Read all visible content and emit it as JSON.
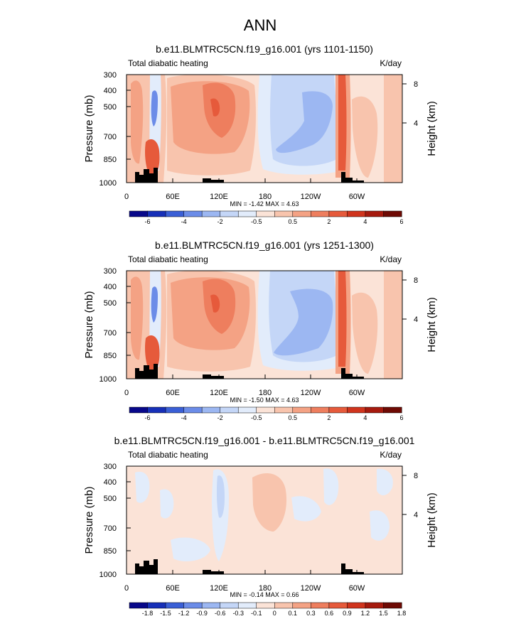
{
  "page_title": "ANN",
  "colors": {
    "axis": "#000000",
    "topography": "#000000",
    "background": "#ffffff"
  },
  "chart_data": [
    {
      "type": "heatmap",
      "title": "b.e11.BLMTRC5CN.f19_g16.001 (yrs 1101-1150)",
      "left_label": "Total diabatic heating",
      "right_label": "K/day",
      "ylabel": "Pressure (mb)",
      "ylabel_right": "Height (km)",
      "x_ticks": [
        "0",
        "60E",
        "120E",
        "180",
        "120W",
        "60W"
      ],
      "y_ticks": [
        "300",
        "400",
        "500",
        "700",
        "850",
        "1000"
      ],
      "height_ticks": [
        "8",
        "4"
      ],
      "xlim": [
        0,
        360
      ],
      "ylim": [
        1000,
        300
      ],
      "stats": "MIN = -1.42  MAX = 4.63",
      "colorbar": {
        "labels": [
          "-6",
          "-4",
          "-2",
          "-0.5",
          "0.5",
          "2",
          "4",
          "6"
        ],
        "colors": [
          "#08088a",
          "#1730b8",
          "#3a5fd6",
          "#6b8ce8",
          "#9cb7f2",
          "#c4d6f7",
          "#e2ecfb",
          "#fbe3d7",
          "#f8c4ad",
          "#f4a284",
          "#ee7e5e",
          "#e65a3b",
          "#d0341d",
          "#a61a0e",
          "#6e0a04"
        ]
      }
    },
    {
      "type": "heatmap",
      "title": "b.e11.BLMTRC5CN.f19_g16.001 (yrs 1251-1300)",
      "left_label": "Total diabatic heating",
      "right_label": "K/day",
      "ylabel": "Pressure (mb)",
      "ylabel_right": "Height (km)",
      "x_ticks": [
        "0",
        "60E",
        "120E",
        "180",
        "120W",
        "60W"
      ],
      "y_ticks": [
        "300",
        "400",
        "500",
        "700",
        "850",
        "1000"
      ],
      "height_ticks": [
        "8",
        "4"
      ],
      "xlim": [
        0,
        360
      ],
      "ylim": [
        1000,
        300
      ],
      "stats": "MIN = -1.50  MAX = 4.63",
      "colorbar": {
        "labels": [
          "-6",
          "-4",
          "-2",
          "-0.5",
          "0.5",
          "2",
          "4",
          "6"
        ],
        "colors": [
          "#08088a",
          "#1730b8",
          "#3a5fd6",
          "#6b8ce8",
          "#9cb7f2",
          "#c4d6f7",
          "#e2ecfb",
          "#fbe3d7",
          "#f8c4ad",
          "#f4a284",
          "#ee7e5e",
          "#e65a3b",
          "#d0341d",
          "#a61a0e",
          "#6e0a04"
        ]
      }
    },
    {
      "type": "heatmap",
      "title": "b.e11.BLMTRC5CN.f19_g16.001 - b.e11.BLMTRC5CN.f19_g16.001",
      "left_label": "Total diabatic heating",
      "right_label": "K/day",
      "ylabel": "Pressure (mb)",
      "ylabel_right": "Height (km)",
      "x_ticks": [
        "0",
        "60E",
        "120E",
        "180",
        "120W",
        "60W"
      ],
      "y_ticks": [
        "300",
        "400",
        "500",
        "700",
        "850",
        "1000"
      ],
      "height_ticks": [
        "8",
        "4"
      ],
      "xlim": [
        0,
        360
      ],
      "ylim": [
        1000,
        300
      ],
      "stats": "MIN = -0.14  MAX =  0.66",
      "colorbar": {
        "labels": [
          "-1.8",
          "-1.5",
          "-1.2",
          "-0.9",
          "-0.6",
          "-0.3",
          "-0.1",
          "0",
          "0.1",
          "0.3",
          "0.6",
          "0.9",
          "1.2",
          "1.5",
          "1.8"
        ],
        "colors": [
          "#08088a",
          "#1730b8",
          "#3a5fd6",
          "#6b8ce8",
          "#9cb7f2",
          "#c4d6f7",
          "#e2ecfb",
          "#fbe3d7",
          "#f8c4ad",
          "#f4a284",
          "#ee7e5e",
          "#e65a3b",
          "#d0341d",
          "#a61a0e",
          "#6e0a04"
        ]
      }
    }
  ]
}
